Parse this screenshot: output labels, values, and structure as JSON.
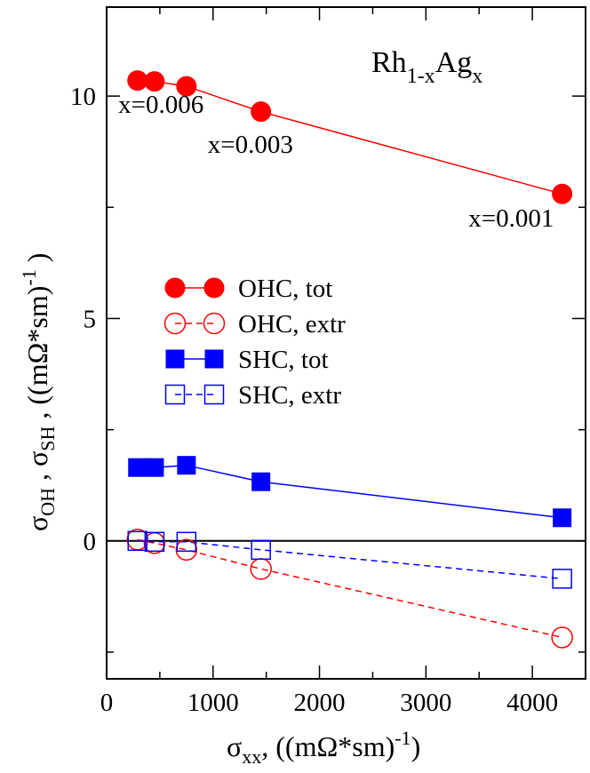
{
  "chart_data": {
    "type": "line",
    "title_parts": [
      "Rh",
      "1-x",
      "Ag",
      "x"
    ],
    "xlabel_parts": [
      "σ",
      "xx",
      ", ((mΩ*sm)",
      "-1",
      ")"
    ],
    "ylabel_parts": [
      "σ",
      "OH",
      " , σ",
      "SH",
      " , ((mΩ*sm)",
      "-1",
      " )"
    ],
    "xlim": [
      0,
      4500
    ],
    "ylim": [
      -3.1,
      12
    ],
    "x_ticks": [
      0,
      1000,
      2000,
      3000,
      4000
    ],
    "x_tick_labels": [
      "0",
      "1000",
      "2000",
      "3000",
      "4000"
    ],
    "y_ticks": [
      0,
      5,
      10
    ],
    "y_tick_labels": [
      "0",
      "5",
      "10"
    ],
    "zero_line": true,
    "grid": false,
    "legend_placement": "center-left",
    "series": [
      {
        "name": "OHC, tot",
        "color": "#ff0000",
        "marker": "circle-filled",
        "dash": "solid",
        "x": [
          290,
          450,
          750,
          1450,
          4280
        ],
        "y": [
          10.35,
          10.33,
          10.22,
          9.65,
          7.8
        ]
      },
      {
        "name": "OHC, extr",
        "color": "#ff0000",
        "marker": "circle-open",
        "dash": "dashed",
        "x": [
          290,
          450,
          750,
          1450,
          4280
        ],
        "y": [
          0.03,
          -0.05,
          -0.2,
          -0.63,
          -2.17
        ]
      },
      {
        "name": "SHC, tot",
        "color": "#0000ff",
        "marker": "square-filled",
        "dash": "solid",
        "x": [
          290,
          450,
          750,
          1450,
          4280
        ],
        "y": [
          1.65,
          1.65,
          1.7,
          1.33,
          0.52
        ]
      },
      {
        "name": "SHC, extr",
        "color": "#0000ff",
        "marker": "square-open",
        "dash": "dashed",
        "x": [
          290,
          450,
          750,
          1450,
          4280
        ],
        "y": [
          0.0,
          -0.02,
          -0.02,
          -0.2,
          -0.85
        ]
      }
    ],
    "annotations": [
      {
        "text": "x=0.006",
        "x": 110,
        "y": 9.62
      },
      {
        "text": "x=0.003",
        "x": 950,
        "y": 8.72
      },
      {
        "text": "x=0.001",
        "x": 3400,
        "y": 7.07
      }
    ]
  }
}
